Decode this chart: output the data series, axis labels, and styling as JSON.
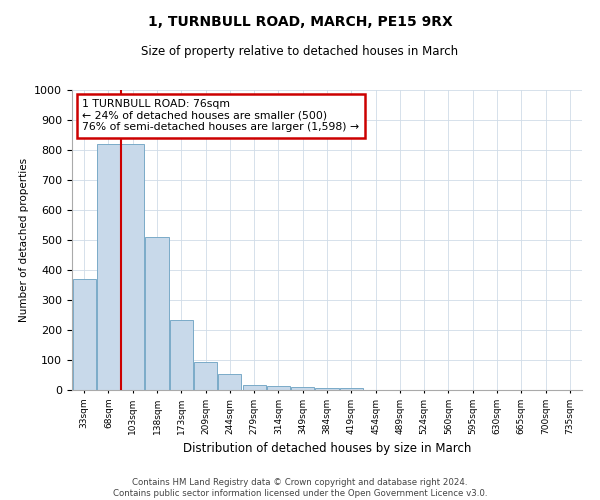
{
  "title": "1, TURNBULL ROAD, MARCH, PE15 9RX",
  "subtitle": "Size of property relative to detached houses in March",
  "xlabel": "Distribution of detached houses by size in March",
  "ylabel": "Number of detached properties",
  "categories": [
    "33sqm",
    "68sqm",
    "103sqm",
    "138sqm",
    "173sqm",
    "209sqm",
    "244sqm",
    "279sqm",
    "314sqm",
    "349sqm",
    "384sqm",
    "419sqm",
    "454sqm",
    "489sqm",
    "524sqm",
    "560sqm",
    "595sqm",
    "630sqm",
    "665sqm",
    "700sqm",
    "735sqm"
  ],
  "bar_heights": [
    370,
    820,
    820,
    510,
    235,
    93,
    52,
    18,
    13,
    10,
    8,
    8,
    0,
    0,
    0,
    0,
    0,
    0,
    0,
    0,
    0
  ],
  "bar_color": "#c8d9ea",
  "bar_edge_color": "#7aaac8",
  "grid_color": "#d0dce8",
  "annotation_text": "1 TURNBULL ROAD: 76sqm\n← 24% of detached houses are smaller (500)\n76% of semi-detached houses are larger (1,598) →",
  "annotation_box_color": "#ffffff",
  "annotation_box_edge_color": "#cc0000",
  "property_line_color": "#cc0000",
  "footnote": "Contains HM Land Registry data © Crown copyright and database right 2024.\nContains public sector information licensed under the Open Government Licence v3.0.",
  "ylim": [
    0,
    1000
  ],
  "yticks": [
    0,
    100,
    200,
    300,
    400,
    500,
    600,
    700,
    800,
    900,
    1000
  ],
  "property_line_x": 1.5
}
